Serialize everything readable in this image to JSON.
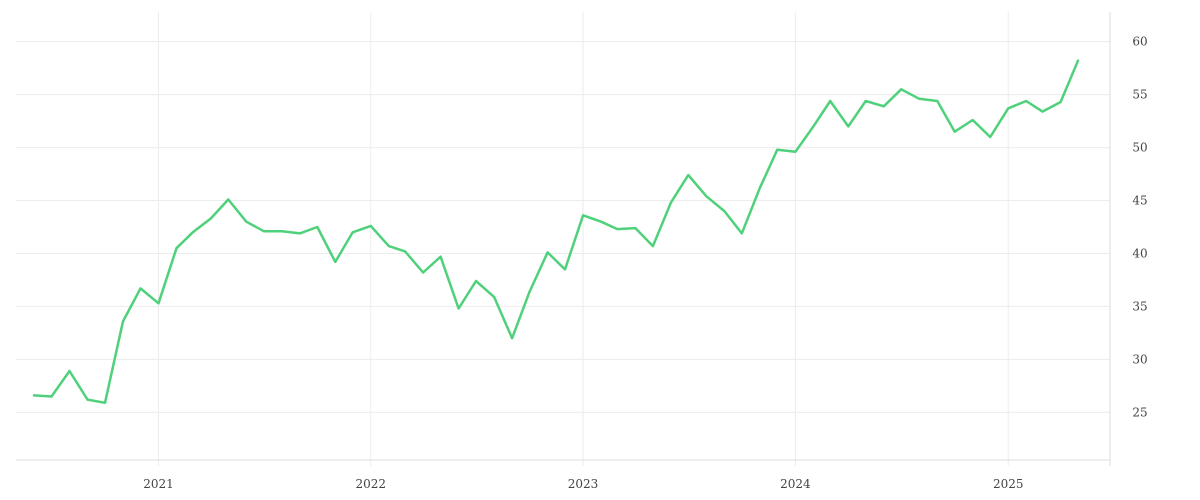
{
  "chart_data": {
    "type": "line",
    "title": "",
    "xlabel": "",
    "ylabel": "",
    "x_start": "2020-06",
    "x": [
      "2020-06",
      "2020-07",
      "2020-08",
      "2020-09",
      "2020-10",
      "2020-11",
      "2020-12",
      "2021-01",
      "2021-02",
      "2021-03",
      "2021-04",
      "2021-05",
      "2021-06",
      "2021-07",
      "2021-08",
      "2021-09",
      "2021-10",
      "2021-11",
      "2021-12",
      "2022-01",
      "2022-02",
      "2022-03",
      "2022-04",
      "2022-05",
      "2022-06",
      "2022-07",
      "2022-08",
      "2022-09",
      "2022-10",
      "2022-11",
      "2022-12",
      "2023-01",
      "2023-02",
      "2023-03",
      "2023-04",
      "2023-05",
      "2023-06",
      "2023-07",
      "2023-08",
      "2023-09",
      "2023-10",
      "2023-11",
      "2023-12",
      "2024-01",
      "2024-02",
      "2024-03",
      "2024-04",
      "2024-05",
      "2024-06",
      "2024-07",
      "2024-08",
      "2024-09",
      "2024-10",
      "2024-11",
      "2024-12",
      "2025-01",
      "2025-02",
      "2025-03",
      "2025-04",
      "2025-05"
    ],
    "series": [
      {
        "name": "",
        "color": "#4fd17b",
        "values": [
          26.6,
          26.5,
          28.9,
          26.2,
          25.9,
          33.6,
          36.7,
          35.3,
          40.5,
          42.0,
          43.3,
          45.1,
          43.0,
          42.1,
          42.1,
          41.9,
          42.5,
          39.2,
          42.0,
          42.6,
          40.7,
          40.2,
          38.2,
          39.7,
          34.8,
          37.4,
          35.9,
          32.0,
          36.4,
          40.1,
          38.5,
          43.6,
          43.0,
          42.3,
          42.4,
          40.7,
          44.8,
          47.4,
          45.4,
          44.0,
          41.9,
          46.2,
          49.8,
          49.6,
          52.0,
          54.4,
          52.0,
          54.4,
          53.9,
          55.5,
          54.6,
          54.4,
          51.5,
          52.6,
          51.0,
          53.7,
          54.4,
          53.4,
          54.3,
          58.2
        ]
      }
    ],
    "y_ticks": [
      25,
      30,
      35,
      40,
      45,
      50,
      55,
      60
    ],
    "x_ticks": [
      {
        "date": "2021-01",
        "label": "2021"
      },
      {
        "date": "2022-01",
        "label": "2022"
      },
      {
        "date": "2023-01",
        "label": "2023"
      },
      {
        "date": "2024-01",
        "label": "2024"
      },
      {
        "date": "2025-01",
        "label": "2025"
      }
    ],
    "ylim": [
      20.5,
      62.8
    ],
    "grid": true,
    "y_axis_position": "right",
    "legend": "none"
  }
}
